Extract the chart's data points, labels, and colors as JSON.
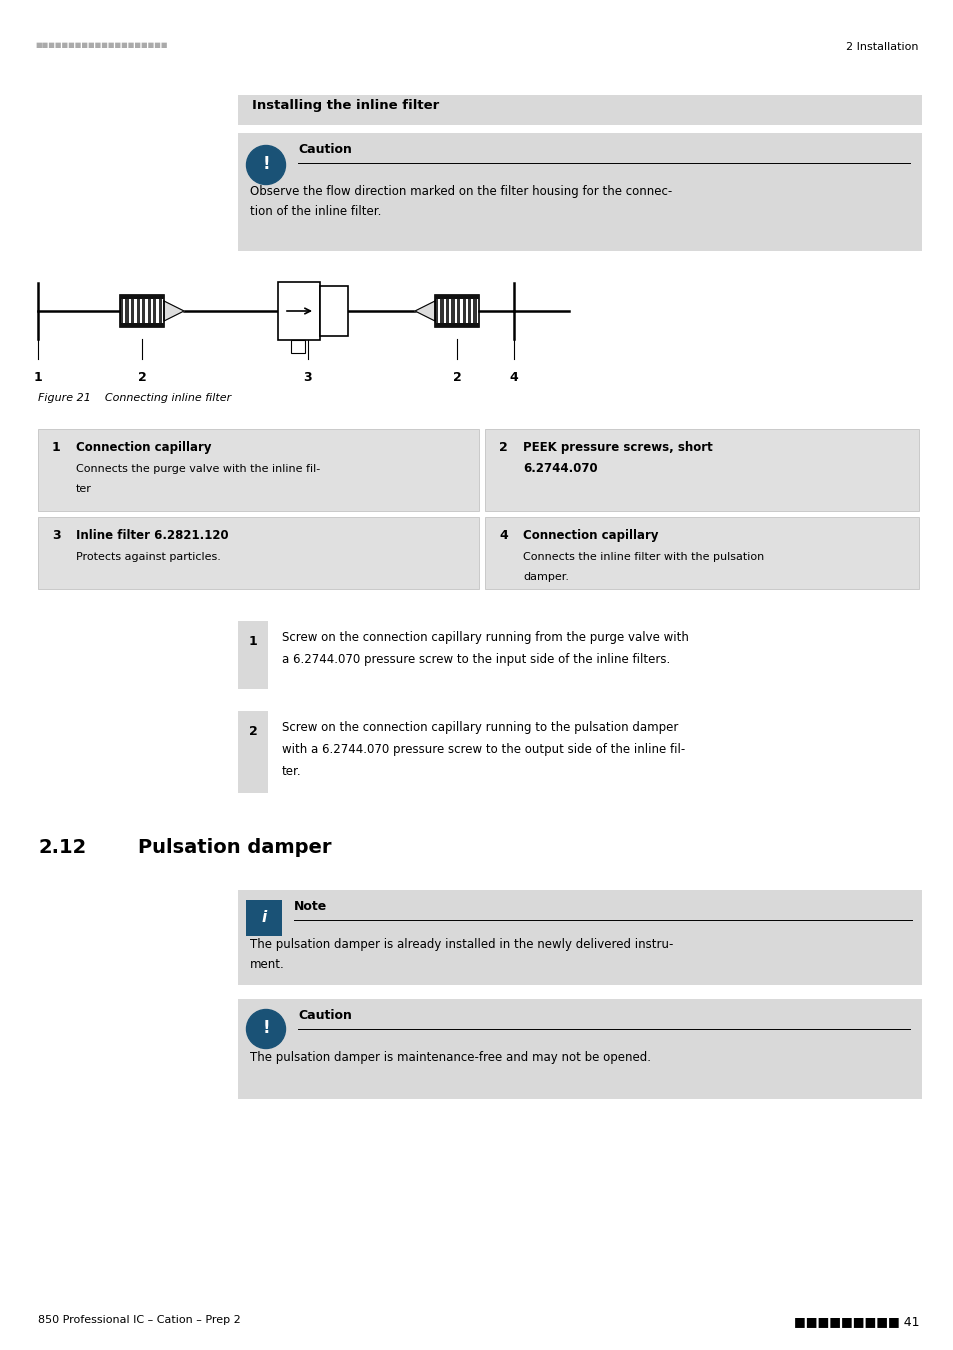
{
  "page_width": 9.54,
  "page_height": 13.5,
  "bg_color": "#ffffff",
  "header_dots": "■■■■■■■■■■■■■■■■■■■■",
  "header_right_text": "2 Installation",
  "section_title": "Installing the inline filter",
  "section_title_bg": "#d9d9d9",
  "caution_box_bg": "#d9d9d9",
  "caution_icon_bg": "#1a5276",
  "caution_title": "Caution",
  "caution_text_line1": "Observe the flow direction marked on the filter housing for the connec-",
  "caution_text_line2": "tion of the inline filter.",
  "figure_caption": "Figure 21    Connecting inline filter",
  "table_bg": "#e0e0e0",
  "row1_num": "1",
  "row1_bold": "Connection capillary",
  "row1_desc_line1": "Connects the purge valve with the inline fil-",
  "row1_desc_line2": "ter",
  "row2_num": "2",
  "row2_bold_line1": "PEEK pressure screws, short",
  "row2_bold_line2": "6.2744.070",
  "row3_num": "3",
  "row3_bold": "Inline filter 6.2821.120",
  "row3_desc": "Protects against particles.",
  "row4_num": "4",
  "row4_bold": "Connection capillary",
  "row4_desc_line1": "Connects the inline filter with the pulsation",
  "row4_desc_line2": "damper.",
  "step1_num": "1",
  "step1_line1": "Screw on the connection capillary running from the purge valve with",
  "step1_line2": "a 6.2744.070 pressure screw to the input side of the inline filters.",
  "step2_num": "2",
  "step2_line1": "Screw on the connection capillary running to the pulsation damper",
  "step2_line2": "with a 6.2744.070 pressure screw to the output side of the inline fil-",
  "step2_line3": "ter.",
  "section2_num": "2.12",
  "section2_title": "Pulsation damper",
  "note_box_bg": "#d9d9d9",
  "note_icon_bg": "#1a5276",
  "note_title": "Note",
  "note_text_line1": "The pulsation damper is already installed in the newly delivered instru-",
  "note_text_line2": "ment.",
  "caution2_box_bg": "#d9d9d9",
  "caution2_icon_bg": "#1a5276",
  "caution2_title": "Caution",
  "caution2_text": "The pulsation damper is maintenance-free and may not be opened.",
  "footer_left": "850 Professional IC – Cation – Prep 2",
  "footer_page": "41",
  "footer_dots": "■■■■■■■■■"
}
